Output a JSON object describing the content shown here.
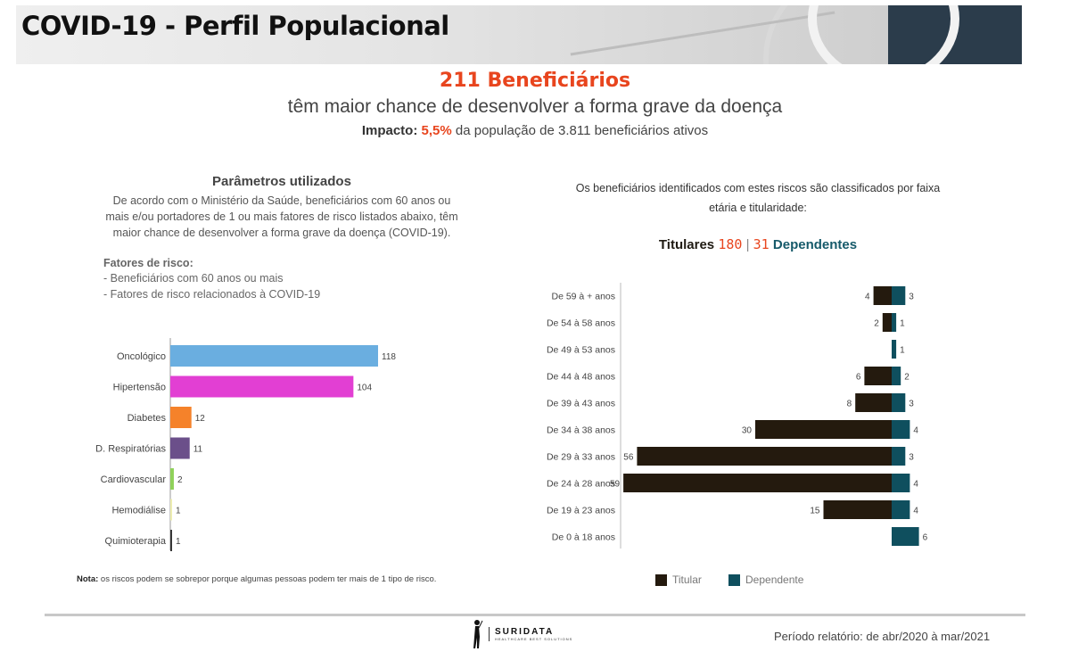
{
  "header": {
    "title": "COVID-19 - Perfil Populacional"
  },
  "headline": {
    "count_text": "211 Beneficiários",
    "subtitle": "têm maior chance de desenvolver a forma grave da doença",
    "impact_label": "Impacto:",
    "impact_pct": "5,5%",
    "impact_rest": "da população de 3.811 beneficiários ativos"
  },
  "params": {
    "title": "Parâmetros utilizados",
    "text": "De acordo com o Ministério da Saúde, beneficiários com 60 anos ou mais e/ou portadores de 1 ou mais fatores de risco listados abaixo, têm maior chance de desenvolver a forma grave da doença (COVID-19).",
    "risk_title": "Fatores de risco:",
    "risk_items": [
      "- Beneficiários com 60 anos ou mais",
      "- Fatores de risco relacionados à COVID-19"
    ]
  },
  "right": {
    "description": "Os beneficiários identificados com estes riscos são classificados por faixa etária e titularidade:",
    "titulares_label": "Titulares",
    "titulares_count": "180",
    "separator": "|",
    "dependentes_count": "31",
    "dependentes_label": "Dependentes"
  },
  "note": {
    "label": "Nota:",
    "text": "os riscos podem se sobrepor porque algumas pessoas podem ter mais de 1 tipo de risco."
  },
  "footer": {
    "brand": "SURIDATA",
    "tagline": "HEALTHCARE BEST SOLUTIONS",
    "period": "Período relatório: de abr/2020 à mar/2021"
  },
  "chart_data": [
    {
      "type": "bar",
      "orientation": "horizontal",
      "categories": [
        "Oncológico",
        "Hipertensão",
        "Diabetes",
        "D. Respiratórias",
        "Cardiovascular",
        "Hemodiálise",
        "Quimioterapia"
      ],
      "values": [
        118,
        104,
        12,
        11,
        2,
        1,
        1
      ],
      "colors": [
        "#6aaee0",
        "#e23fd3",
        "#f5822a",
        "#6b4f8a",
        "#8fd15a",
        "#ededb0",
        "#333333"
      ],
      "xlim": [
        0,
        118
      ]
    },
    {
      "type": "bar",
      "orientation": "horizontal",
      "stacked": "diverging",
      "categories": [
        "De 59 à + anos",
        "De 54 à 58 anos",
        "De 49 à 53 anos",
        "De 44 à 48 anos",
        "De 39 à 43 anos",
        "De 34 à 38 anos",
        "De 29 à 33 anos",
        "De 24 à 28 anos",
        "De 19 à 23 anos",
        "De 0 à 18 anos"
      ],
      "series": [
        {
          "name": "Titular",
          "color": "#241a0e",
          "values": [
            4,
            2,
            0,
            6,
            8,
            30,
            56,
            59,
            15,
            0
          ]
        },
        {
          "name": "Dependente",
          "color": "#0f4f5e",
          "values": [
            3,
            1,
            1,
            2,
            3,
            4,
            3,
            4,
            4,
            6
          ]
        }
      ],
      "legend": "bottom"
    }
  ]
}
